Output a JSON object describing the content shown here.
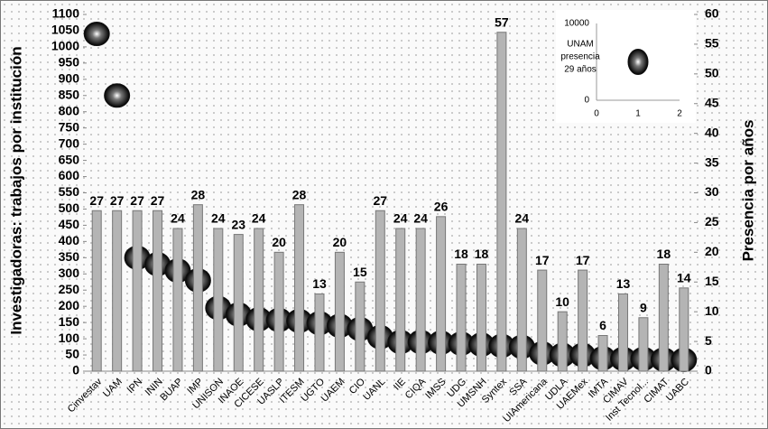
{
  "chart_data": [
    {
      "type": "combo",
      "ylabel": "Investigadoras: trabajos por institución",
      "y2label": "Presencia por años",
      "categories": [
        "Cinvestav",
        "UAM",
        "IPN",
        "ININ",
        "BUAP",
        "IMP",
        "UNISON",
        "INAOE",
        "CICESE",
        "UASLP",
        "ITESM",
        "UGTO",
        "UAEM",
        "CIO",
        "UANL",
        "IIE",
        "CIQA",
        "IMSS",
        "UDG",
        "UMSNH",
        "Syntex",
        "SSA",
        "UIAmericana",
        "UDLA",
        "UAEMex",
        "IMTA",
        "CIMAV",
        "Inst Tecnol...",
        "CIMAT",
        "UABC"
      ],
      "series": [
        {
          "type": "scatter",
          "color": "#111111",
          "values": [
            1040,
            850,
            350,
            330,
            310,
            280,
            195,
            175,
            160,
            158,
            155,
            148,
            140,
            130,
            105,
            90,
            90,
            88,
            85,
            82,
            78,
            75,
            55,
            50,
            50,
            40,
            38,
            38,
            36,
            35
          ]
        },
        {
          "type": "bar",
          "axis": "y2",
          "color": "#b4b4b4",
          "values": [
            27,
            27,
            27,
            27,
            24,
            28,
            24,
            23,
            24,
            20,
            28,
            13,
            20,
            15,
            27,
            24,
            24,
            26,
            18,
            18,
            57,
            24,
            17,
            10,
            17,
            6,
            13,
            9,
            18,
            14
          ]
        }
      ],
      "ylim": [
        0,
        1100
      ],
      "yticks": [
        0,
        50,
        100,
        150,
        200,
        250,
        300,
        350,
        400,
        450,
        500,
        550,
        600,
        650,
        700,
        750,
        800,
        850,
        900,
        950,
        1000,
        1050,
        1100
      ],
      "y2lim": [
        0,
        60
      ],
      "y2ticks": [
        0,
        5,
        10,
        15,
        20,
        25,
        30,
        35,
        40,
        45,
        50,
        55,
        60
      ]
    },
    {
      "type": "scatter",
      "annotation": [
        "UNAM",
        "presencia",
        "29 años"
      ],
      "color": "#111111",
      "x": [
        1
      ],
      "values": [
        5000
      ],
      "xlim": [
        0,
        2
      ],
      "xticks": [
        0,
        1,
        2
      ],
      "ylim": [
        0,
        10000
      ],
      "yticks": [
        0,
        10000
      ]
    }
  ]
}
